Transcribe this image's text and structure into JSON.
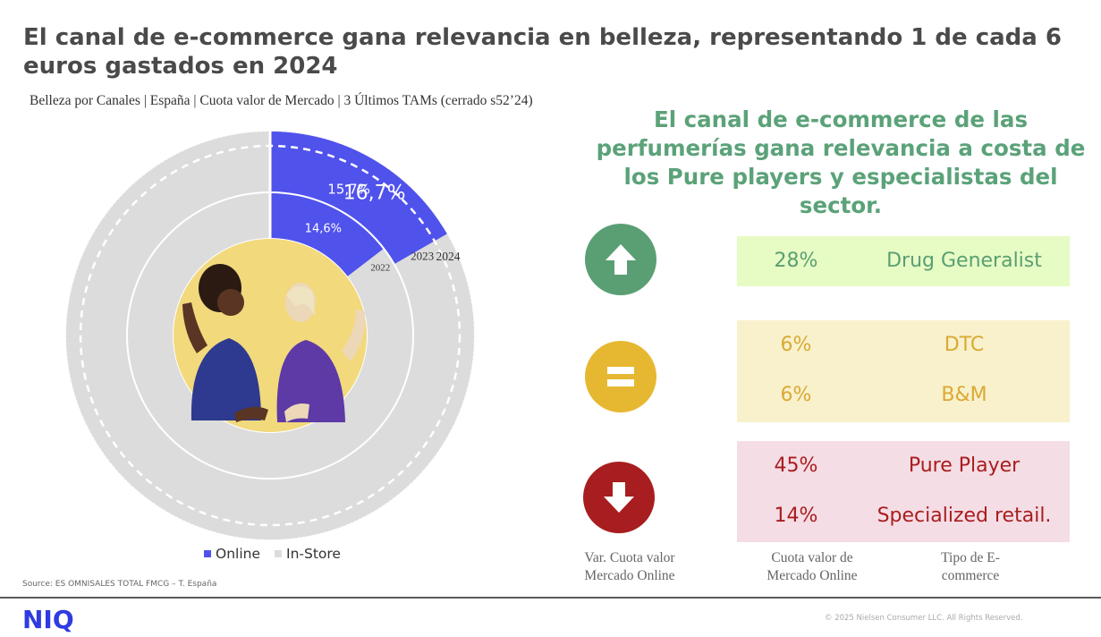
{
  "title": "El canal de e-commerce gana relevancia en belleza, representando 1 de cada 6 euros gastados  en 2024",
  "subtitle": "Belleza por Canales | España | Cuota valor de Mercado | 3 Últimos TAMs (cerrado s52’24)",
  "chart_data": {
    "type": "radial-bar",
    "subtitle": "Belleza por Canales | España | Cuota valor de Mercado | 3 Últimos TAMs (cerrado s52’24)",
    "categories": [
      "2022",
      "2023",
      "2024"
    ],
    "series": [
      {
        "name": "Online",
        "values": [
          14.6,
          15.7,
          16.7
        ],
        "labels": [
          "14,6%",
          "15,7%",
          "16,7%"
        ],
        "color": "#5052ec"
      },
      {
        "name": "In-Store",
        "values": [
          85.4,
          84.3,
          83.3
        ],
        "color": "#dcdcdc"
      }
    ],
    "ylim": [
      0,
      100
    ],
    "legend_position": "bottom"
  },
  "legend": [
    {
      "label": "Online",
      "color": "#5052ec"
    },
    {
      "label": "In-Store",
      "color": "#dcdcdc"
    }
  ],
  "source": "Source: ES OMNISALES TOTAL FMCG – T. España",
  "headline": "El canal de e-commerce de las perfumerías gana relevancia a costa de los Pure players y especialistas del sector.",
  "groups": [
    {
      "trend": "up",
      "icon": "arrow-up-icon",
      "circle_color": "#5a9f73",
      "box_color": "#e7fbc4",
      "text_color": "#5a9f73",
      "rows": [
        {
          "pct": "28%",
          "tipo": "Drug Generalist"
        }
      ]
    },
    {
      "trend": "equal",
      "icon": "equals-icon",
      "circle_color": "#e6b832",
      "box_color": "#f8f1cc",
      "text_color": "#dba932",
      "rows": [
        {
          "pct": "6%",
          "tipo": "DTC"
        },
        {
          "pct": "6%",
          "tipo": "B&M"
        }
      ]
    },
    {
      "trend": "down",
      "icon": "arrow-down-icon",
      "circle_color": "#a81d1f",
      "box_color": "#f5dde5",
      "text_color": "#a81d1f",
      "rows": [
        {
          "pct": "45%",
          "tipo": "Pure Player"
        },
        {
          "pct": "14%",
          "tipo": "Specialized retail."
        }
      ]
    }
  ],
  "column_headers": {
    "var": "Var. Cuota valor Mercado Online",
    "cuota": "Cuota valor de Mercado Online",
    "tipo": "Tipo de E-commerce"
  },
  "footer": {
    "logo": "NIQ",
    "copyright": "© 2025 Nielsen Consumer LLC. All Rights Reserved."
  }
}
